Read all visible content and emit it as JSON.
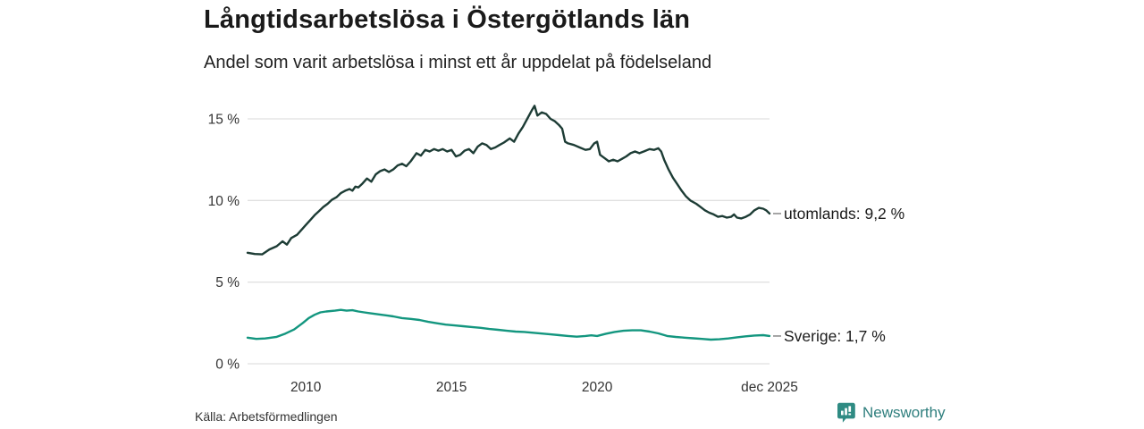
{
  "header": {
    "title": "Långtidsarbetslösa i Östergötlands län",
    "subtitle": "Andel som varit arbetslösa i minst ett år uppdelat på födelseland"
  },
  "source": "Källa: Arbetsförmedlingen",
  "branding": {
    "name": "Newsworthy",
    "icon": "newsworthy-speech-bubble-bar-chart-icon",
    "icon_color": "#2f8b83",
    "text_color": "#2e7e7d"
  },
  "colors": {
    "grid": "#e0e0e0",
    "axis_text": "#333333",
    "label_text": "#1a1a1a",
    "connector_dash": "#888888"
  },
  "chart_data": {
    "type": "line",
    "title": "Långtidsarbetslösa i Östergötlands län",
    "subtitle": "Andel som varit arbetslösa i minst ett år uppdelat på födelseland",
    "unit": "%",
    "grid": true,
    "legend_position": "end-of-line",
    "x_axis": {
      "range_decimal_years": [
        2008.0,
        2025.917
      ],
      "ticks": [
        {
          "label": "2010",
          "year": 2010
        },
        {
          "label": "2015",
          "year": 2015
        },
        {
          "label": "2020",
          "year": 2020
        },
        {
          "label": "dec 2025",
          "year": 2025.917
        }
      ]
    },
    "y_axis": {
      "range": [
        0,
        16.5
      ],
      "ticks": [
        {
          "label": "0 %",
          "value": 0
        },
        {
          "label": "5 %",
          "value": 5
        },
        {
          "label": "10 %",
          "value": 10
        },
        {
          "label": "15 %",
          "value": 15
        }
      ]
    },
    "series": [
      {
        "name": "utomlands",
        "end_label": "utomlands: 9,2 %",
        "last_value_text": "9,2 %",
        "color": "#1d3c35",
        "points": [
          [
            2008.0,
            6.8
          ],
          [
            2008.25,
            6.72
          ],
          [
            2008.5,
            6.7
          ],
          [
            2008.75,
            7.0
          ],
          [
            2009.0,
            7.2
          ],
          [
            2009.2,
            7.5
          ],
          [
            2009.35,
            7.3
          ],
          [
            2009.5,
            7.7
          ],
          [
            2009.7,
            7.9
          ],
          [
            2009.85,
            8.2
          ],
          [
            2010.0,
            8.5
          ],
          [
            2010.15,
            8.8
          ],
          [
            2010.3,
            9.1
          ],
          [
            2010.45,
            9.35
          ],
          [
            2010.6,
            9.6
          ],
          [
            2010.75,
            9.8
          ],
          [
            2010.9,
            10.05
          ],
          [
            2011.05,
            10.2
          ],
          [
            2011.2,
            10.45
          ],
          [
            2011.35,
            10.6
          ],
          [
            2011.5,
            10.7
          ],
          [
            2011.6,
            10.6
          ],
          [
            2011.7,
            10.85
          ],
          [
            2011.8,
            10.8
          ],
          [
            2011.95,
            11.05
          ],
          [
            2012.1,
            11.35
          ],
          [
            2012.25,
            11.15
          ],
          [
            2012.4,
            11.6
          ],
          [
            2012.55,
            11.8
          ],
          [
            2012.7,
            11.9
          ],
          [
            2012.85,
            11.75
          ],
          [
            2013.0,
            11.9
          ],
          [
            2013.15,
            12.15
          ],
          [
            2013.3,
            12.25
          ],
          [
            2013.45,
            12.1
          ],
          [
            2013.6,
            12.4
          ],
          [
            2013.8,
            12.9
          ],
          [
            2013.95,
            12.75
          ],
          [
            2014.1,
            13.1
          ],
          [
            2014.25,
            13.0
          ],
          [
            2014.4,
            13.15
          ],
          [
            2014.55,
            13.05
          ],
          [
            2014.7,
            13.15
          ],
          [
            2014.85,
            13.0
          ],
          [
            2015.0,
            13.1
          ],
          [
            2015.15,
            12.7
          ],
          [
            2015.3,
            12.8
          ],
          [
            2015.45,
            13.05
          ],
          [
            2015.6,
            13.15
          ],
          [
            2015.75,
            12.9
          ],
          [
            2015.9,
            13.3
          ],
          [
            2016.05,
            13.5
          ],
          [
            2016.2,
            13.4
          ],
          [
            2016.35,
            13.15
          ],
          [
            2016.5,
            13.25
          ],
          [
            2016.65,
            13.4
          ],
          [
            2016.8,
            13.55
          ],
          [
            2017.0,
            13.8
          ],
          [
            2017.15,
            13.6
          ],
          [
            2017.3,
            14.1
          ],
          [
            2017.45,
            14.5
          ],
          [
            2017.6,
            15.0
          ],
          [
            2017.75,
            15.5
          ],
          [
            2017.85,
            15.8
          ],
          [
            2017.95,
            15.2
          ],
          [
            2018.1,
            15.4
          ],
          [
            2018.25,
            15.3
          ],
          [
            2018.4,
            15.0
          ],
          [
            2018.55,
            14.85
          ],
          [
            2018.7,
            14.6
          ],
          [
            2018.8,
            14.4
          ],
          [
            2018.9,
            13.6
          ],
          [
            2019.0,
            13.5
          ],
          [
            2019.2,
            13.4
          ],
          [
            2019.4,
            13.25
          ],
          [
            2019.6,
            13.1
          ],
          [
            2019.75,
            13.15
          ],
          [
            2019.9,
            13.5
          ],
          [
            2020.0,
            13.6
          ],
          [
            2020.1,
            12.8
          ],
          [
            2020.25,
            12.6
          ],
          [
            2020.4,
            12.4
          ],
          [
            2020.55,
            12.5
          ],
          [
            2020.7,
            12.4
          ],
          [
            2020.85,
            12.55
          ],
          [
            2021.0,
            12.7
          ],
          [
            2021.15,
            12.9
          ],
          [
            2021.3,
            13.0
          ],
          [
            2021.45,
            12.9
          ],
          [
            2021.6,
            13.0
          ],
          [
            2021.8,
            13.15
          ],
          [
            2021.95,
            13.1
          ],
          [
            2022.1,
            13.2
          ],
          [
            2022.2,
            13.0
          ],
          [
            2022.3,
            12.5
          ],
          [
            2022.45,
            11.9
          ],
          [
            2022.6,
            11.4
          ],
          [
            2022.75,
            11.0
          ],
          [
            2022.9,
            10.6
          ],
          [
            2023.05,
            10.25
          ],
          [
            2023.2,
            10.0
          ],
          [
            2023.4,
            9.8
          ],
          [
            2023.55,
            9.6
          ],
          [
            2023.7,
            9.4
          ],
          [
            2023.85,
            9.25
          ],
          [
            2024.0,
            9.15
          ],
          [
            2024.15,
            9.0
          ],
          [
            2024.3,
            9.05
          ],
          [
            2024.45,
            8.95
          ],
          [
            2024.6,
            9.0
          ],
          [
            2024.7,
            9.15
          ],
          [
            2024.8,
            8.95
          ],
          [
            2024.95,
            8.9
          ],
          [
            2025.1,
            9.0
          ],
          [
            2025.25,
            9.15
          ],
          [
            2025.4,
            9.4
          ],
          [
            2025.55,
            9.55
          ],
          [
            2025.7,
            9.5
          ],
          [
            2025.8,
            9.4
          ],
          [
            2025.917,
            9.2
          ]
        ]
      },
      {
        "name": "Sverige",
        "end_label": "Sverige: 1,7 %",
        "last_value_text": "1,7 %",
        "color": "#13967f",
        "points": [
          [
            2008.0,
            1.6
          ],
          [
            2008.3,
            1.52
          ],
          [
            2008.6,
            1.55
          ],
          [
            2009.0,
            1.65
          ],
          [
            2009.3,
            1.85
          ],
          [
            2009.6,
            2.1
          ],
          [
            2009.9,
            2.5
          ],
          [
            2010.1,
            2.8
          ],
          [
            2010.3,
            3.0
          ],
          [
            2010.5,
            3.15
          ],
          [
            2010.7,
            3.2
          ],
          [
            2011.0,
            3.25
          ],
          [
            2011.2,
            3.3
          ],
          [
            2011.4,
            3.25
          ],
          [
            2011.6,
            3.28
          ],
          [
            2011.8,
            3.2
          ],
          [
            2012.0,
            3.15
          ],
          [
            2012.2,
            3.1
          ],
          [
            2012.4,
            3.05
          ],
          [
            2012.6,
            3.0
          ],
          [
            2012.8,
            2.95
          ],
          [
            2013.0,
            2.9
          ],
          [
            2013.3,
            2.8
          ],
          [
            2013.6,
            2.75
          ],
          [
            2013.9,
            2.68
          ],
          [
            2014.2,
            2.57
          ],
          [
            2014.5,
            2.48
          ],
          [
            2014.8,
            2.4
          ],
          [
            2015.1,
            2.35
          ],
          [
            2015.4,
            2.3
          ],
          [
            2015.7,
            2.25
          ],
          [
            2016.0,
            2.2
          ],
          [
            2016.3,
            2.13
          ],
          [
            2016.6,
            2.08
          ],
          [
            2016.9,
            2.02
          ],
          [
            2017.2,
            1.97
          ],
          [
            2017.5,
            1.95
          ],
          [
            2017.8,
            1.9
          ],
          [
            2018.1,
            1.85
          ],
          [
            2018.4,
            1.8
          ],
          [
            2018.7,
            1.75
          ],
          [
            2019.0,
            1.7
          ],
          [
            2019.3,
            1.66
          ],
          [
            2019.6,
            1.7
          ],
          [
            2019.8,
            1.74
          ],
          [
            2020.0,
            1.7
          ],
          [
            2020.3,
            1.84
          ],
          [
            2020.6,
            1.95
          ],
          [
            2020.9,
            2.02
          ],
          [
            2021.2,
            2.05
          ],
          [
            2021.5,
            2.05
          ],
          [
            2021.8,
            1.97
          ],
          [
            2022.1,
            1.86
          ],
          [
            2022.4,
            1.7
          ],
          [
            2022.7,
            1.64
          ],
          [
            2023.0,
            1.6
          ],
          [
            2023.3,
            1.56
          ],
          [
            2023.6,
            1.52
          ],
          [
            2023.9,
            1.48
          ],
          [
            2024.2,
            1.5
          ],
          [
            2024.5,
            1.55
          ],
          [
            2024.8,
            1.62
          ],
          [
            2025.1,
            1.68
          ],
          [
            2025.4,
            1.73
          ],
          [
            2025.7,
            1.75
          ],
          [
            2025.917,
            1.7
          ]
        ]
      }
    ]
  }
}
